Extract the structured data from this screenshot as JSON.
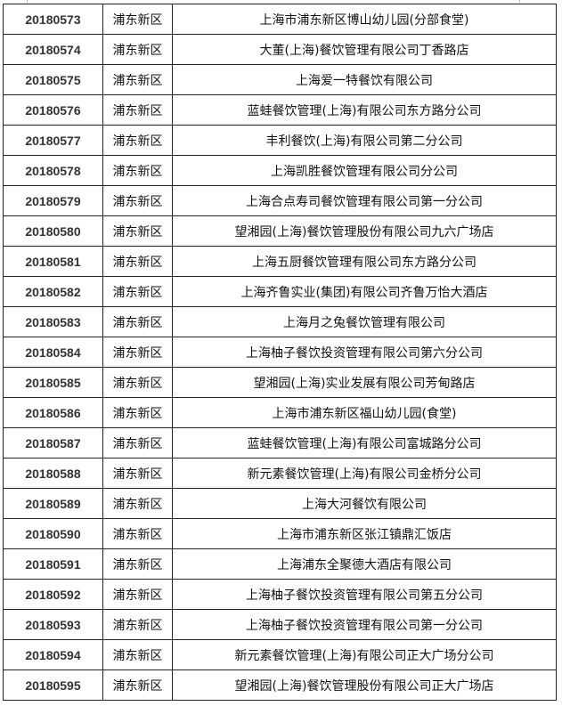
{
  "table": {
    "rows": [
      {
        "id": "20180573",
        "district": "浦东新区",
        "name": "上海市浦东新区博山幼儿园(分部食堂)"
      },
      {
        "id": "20180574",
        "district": "浦东新区",
        "name": "大董(上海)餐饮管理有限公司丁香路店"
      },
      {
        "id": "20180575",
        "district": "浦东新区",
        "name": "上海爱一特餐饮有限公司"
      },
      {
        "id": "20180576",
        "district": "浦东新区",
        "name": "蓝蛙餐饮管理(上海)有限公司东方路分公司"
      },
      {
        "id": "20180577",
        "district": "浦东新区",
        "name": "丰利餐饮(上海)有限公司第二分公司"
      },
      {
        "id": "20180578",
        "district": "浦东新区",
        "name": "上海凯胜餐饮管理有限公司分公司"
      },
      {
        "id": "20180579",
        "district": "浦东新区",
        "name": "上海合点寿司餐饮管理有限公司第一分公司"
      },
      {
        "id": "20180580",
        "district": "浦东新区",
        "name": "望湘园(上海)餐饮管理股份有限公司九六广场店"
      },
      {
        "id": "20180581",
        "district": "浦东新区",
        "name": "上海五厨餐饮管理有限公司东方路分公司"
      },
      {
        "id": "20180582",
        "district": "浦东新区",
        "name": "上海齐鲁实业(集团)有限公司齐鲁万怡大酒店"
      },
      {
        "id": "20180583",
        "district": "浦东新区",
        "name": "上海月之兔餐饮管理有限公司"
      },
      {
        "id": "20180584",
        "district": "浦东新区",
        "name": "上海柚子餐饮投资管理有限公司第六分公司"
      },
      {
        "id": "20180585",
        "district": "浦东新区",
        "name": "望湘园(上海)实业发展有限公司芳甸路店"
      },
      {
        "id": "20180586",
        "district": "浦东新区",
        "name": "上海市浦东新区福山幼儿园(食堂)"
      },
      {
        "id": "20180587",
        "district": "浦东新区",
        "name": "蓝蛙餐饮管理(上海)有限公司富城路分公司"
      },
      {
        "id": "20180588",
        "district": "浦东新区",
        "name": "新元素餐饮管理(上海)有限公司金桥分公司"
      },
      {
        "id": "20180589",
        "district": "浦东新区",
        "name": "上海大河餐饮有限公司"
      },
      {
        "id": "20180590",
        "district": "浦东新区",
        "name": "上海市浦东新区张江镇鼎汇饭店"
      },
      {
        "id": "20180591",
        "district": "浦东新区",
        "name": "上海浦东全聚德大酒店有限公司"
      },
      {
        "id": "20180592",
        "district": "浦东新区",
        "name": "上海柚子餐饮投资管理有限公司第五分公司"
      },
      {
        "id": "20180593",
        "district": "浦东新区",
        "name": "上海柚子餐饮投资管理有限公司第一分公司"
      },
      {
        "id": "20180594",
        "district": "浦东新区",
        "name": "新元素餐饮管理(上海)有限公司正大广场分公司"
      },
      {
        "id": "20180595",
        "district": "浦东新区",
        "name": "望湘园(上海)餐饮管理股份有限公司正大广场店"
      }
    ]
  }
}
